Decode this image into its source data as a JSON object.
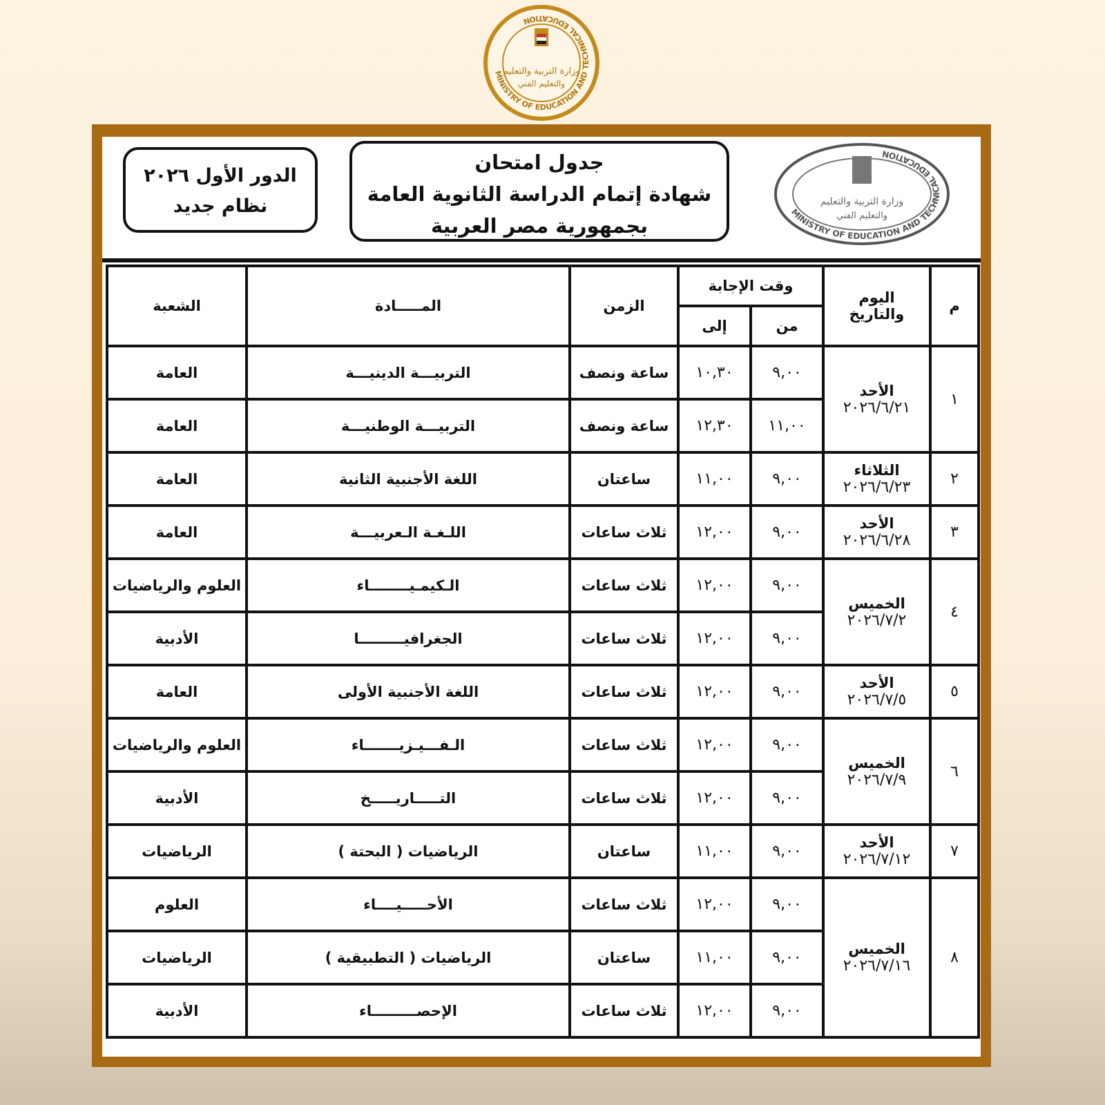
{
  "logo_text": {
    "english": "MINISTRY OF EDUCATION AND TECHNICAL EDUCATION",
    "arabic": "وزارة التربية والتعليم والتعليم الفني"
  },
  "colors": {
    "frame": "#a86a12",
    "logo_gold": "#c48a1c",
    "background": "#fdf3e0"
  },
  "header": {
    "session_line1": "الدور الأول ٢٠٢٦",
    "session_line2": "نظام جديد",
    "title_line1": "جدول امتحان",
    "title_line2": "شهادة إتمام الدراسة الثانوية العامة",
    "title_line3": "بجمهورية مصر العربية"
  },
  "columns": {
    "num": "م",
    "day_date": "اليوم والتاريخ",
    "answer_time": "وقت الإجابة",
    "from": "من",
    "to": "إلى",
    "duration": "الزمن",
    "subject": "المـــــادة",
    "branch": "الشعبة"
  },
  "days": [
    {
      "num": "١",
      "day": "الأحد",
      "date": "٢٠٢٦/٦/٢١",
      "exams": [
        {
          "from": "٩,٠٠",
          "to": "١٠,٣٠",
          "duration": "ساعة ونصف",
          "subject": "التربيـــة الدينيـــة",
          "branch": "العامة"
        },
        {
          "from": "١١,٠٠",
          "to": "١٢,٣٠",
          "duration": "ساعة ونصف",
          "subject": "التربيـــة الوطنيـــة",
          "branch": "العامة"
        }
      ]
    },
    {
      "num": "٢",
      "day": "الثلاثاء",
      "date": "٢٠٢٦/٦/٢٣",
      "exams": [
        {
          "from": "٩,٠٠",
          "to": "١١,٠٠",
          "duration": "ساعتان",
          "subject": "اللغة الأجنبية الثانية",
          "branch": "العامة"
        }
      ]
    },
    {
      "num": "٣",
      "day": "الأحد",
      "date": "٢٠٢٦/٦/٢٨",
      "exams": [
        {
          "from": "٩,٠٠",
          "to": "١٢,٠٠",
          "duration": "ثلاث ساعات",
          "subject": "اللـغـة الـعربيـــة",
          "branch": "العامة"
        }
      ]
    },
    {
      "num": "٤",
      "day": "الخميس",
      "date": "٢٠٢٦/٧/٢",
      "exams": [
        {
          "from": "٩,٠٠",
          "to": "١٢,٠٠",
          "duration": "ثلاث ساعات",
          "subject": "الـكيمـيــــــــاء",
          "branch": "العلوم والرياضيات"
        },
        {
          "from": "٩,٠٠",
          "to": "١٢,٠٠",
          "duration": "ثلاث ساعات",
          "subject": "الجغرافيـــــــــا",
          "branch": "الأدبية"
        }
      ]
    },
    {
      "num": "٥",
      "day": "الأحد",
      "date": "٢٠٢٦/٧/٥",
      "exams": [
        {
          "from": "٩,٠٠",
          "to": "١٢,٠٠",
          "duration": "ثلاث ساعات",
          "subject": "اللغة الأجنبية الأولى",
          "branch": "العامة"
        }
      ]
    },
    {
      "num": "٦",
      "day": "الخميس",
      "date": "٢٠٢٦/٧/٩",
      "exams": [
        {
          "from": "٩,٠٠",
          "to": "١٢,٠٠",
          "duration": "ثلاث ساعات",
          "subject": "الـفـــيـزيـــــــاء",
          "branch": "العلوم والرياضيات"
        },
        {
          "from": "٩,٠٠",
          "to": "١٢,٠٠",
          "duration": "ثلاث ساعات",
          "subject": "التـــــاريـــــخ",
          "branch": "الأدبية"
        }
      ]
    },
    {
      "num": "٧",
      "day": "الأحد",
      "date": "٢٠٢٦/٧/١٢",
      "exams": [
        {
          "from": "٩,٠٠",
          "to": "١١,٠٠",
          "duration": "ساعتان",
          "subject": "الرياضيات ( البحتة )",
          "branch": "الرياضيات"
        }
      ]
    },
    {
      "num": "٨",
      "day": "الخميس",
      "date": "٢٠٢٦/٧/١٦",
      "exams": [
        {
          "from": "٩,٠٠",
          "to": "١٢,٠٠",
          "duration": "ثلاث ساعات",
          "subject": "الأحـــــيــــاء",
          "branch": "العلوم"
        },
        {
          "from": "٩,٠٠",
          "to": "١١,٠٠",
          "duration": "ساعتان",
          "subject": "الرياضيات ( التطبيقية )",
          "branch": "الرياضيات"
        },
        {
          "from": "٩,٠٠",
          "to": "١٢,٠٠",
          "duration": "ثلاث ساعات",
          "subject": "الإحصـــــــــاء",
          "branch": "الأدبية"
        }
      ]
    }
  ]
}
